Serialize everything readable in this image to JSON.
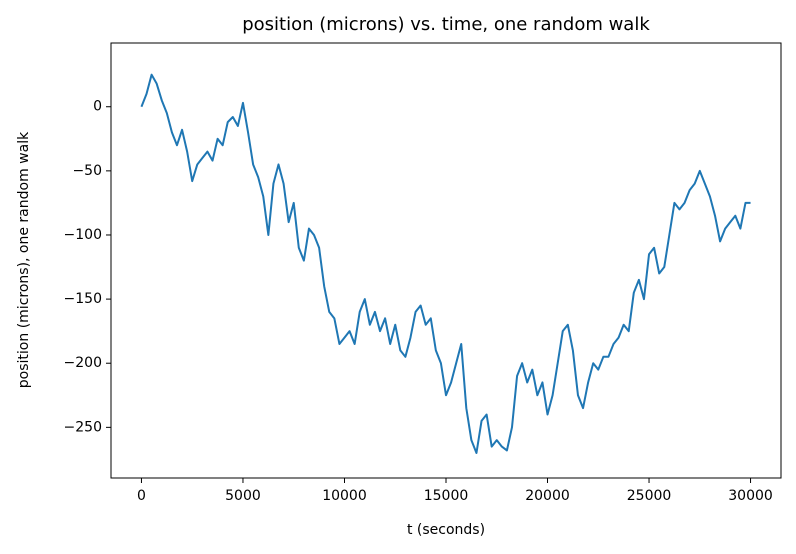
{
  "chart_data": {
    "type": "line",
    "title": "position (microns) vs. time, one random walk",
    "xlabel": "t (seconds)",
    "ylabel": "position (microns), one random walk",
    "x": [
      0,
      250,
      500,
      750,
      1000,
      1250,
      1500,
      1750,
      2000,
      2250,
      2500,
      2750,
      3000,
      3250,
      3500,
      3750,
      4000,
      4250,
      4500,
      4750,
      5000,
      5250,
      5500,
      5750,
      6000,
      6250,
      6500,
      6750,
      7000,
      7250,
      7500,
      7750,
      8000,
      8250,
      8500,
      8750,
      9000,
      9250,
      9500,
      9750,
      10000,
      10250,
      10500,
      10750,
      11000,
      11250,
      11500,
      11750,
      12000,
      12250,
      12500,
      12750,
      13000,
      13250,
      13500,
      13750,
      14000,
      14250,
      14500,
      14750,
      15000,
      15250,
      15500,
      15750,
      16000,
      16250,
      16500,
      16750,
      17000,
      17250,
      17500,
      17750,
      18000,
      18250,
      18500,
      18750,
      19000,
      19250,
      19500,
      19750,
      20000,
      20250,
      20500,
      20750,
      21000,
      21250,
      21500,
      21750,
      22000,
      22250,
      22500,
      22750,
      23000,
      23250,
      23500,
      23750,
      24000,
      24250,
      24500,
      24750,
      25000,
      25250,
      25500,
      25750,
      26000,
      26250,
      26500,
      26750,
      27000,
      27250,
      27500,
      27750,
      28000,
      28250,
      28500,
      28750,
      29000,
      29250,
      29500,
      29750,
      30000
    ],
    "series": [
      {
        "name": "position",
        "color": "#1f77b4",
        "values": [
          0,
          10,
          25,
          18,
          5,
          -5,
          -20,
          -30,
          -18,
          -35,
          -58,
          -45,
          -40,
          -35,
          -42,
          -25,
          -30,
          -12,
          -8,
          -15,
          3,
          -20,
          -45,
          -55,
          -70,
          -100,
          -60,
          -45,
          -60,
          -90,
          -75,
          -110,
          -120,
          -95,
          -100,
          -110,
          -140,
          -160,
          -165,
          -185,
          -180,
          -175,
          -185,
          -160,
          -150,
          -170,
          -160,
          -175,
          -165,
          -185,
          -170,
          -190,
          -195,
          -180,
          -160,
          -155,
          -170,
          -165,
          -190,
          -200,
          -225,
          -215,
          -200,
          -185,
          -235,
          -260,
          -270,
          -245,
          -240,
          -265,
          -260,
          -265,
          -268,
          -250,
          -210,
          -200,
          -215,
          -205,
          -225,
          -215,
          -240,
          -225,
          -200,
          -175,
          -170,
          -190,
          -225,
          -235,
          -215,
          -200,
          -205,
          -195,
          -195,
          -185,
          -180,
          -170,
          -175,
          -145,
          -135,
          -150,
          -115,
          -110,
          -130,
          -125,
          -100,
          -75,
          -80,
          -75,
          -65,
          -60,
          -50,
          -60,
          -70,
          -85,
          -105,
          -95,
          -90,
          -85,
          -95,
          -75,
          -75
        ]
      }
    ],
    "xlim": [
      -1500,
      31500
    ],
    "ylim": [
      -289.5,
      49.7
    ],
    "xticks": [
      0,
      5000,
      10000,
      15000,
      20000,
      25000,
      30000
    ],
    "yticks": [
      {
        "value": -250,
        "label": "−250"
      },
      {
        "value": -200,
        "label": "−200"
      },
      {
        "value": -150,
        "label": "−150"
      },
      {
        "value": -100,
        "label": "−100"
      },
      {
        "value": -50,
        "label": "−50"
      },
      0
    ]
  }
}
